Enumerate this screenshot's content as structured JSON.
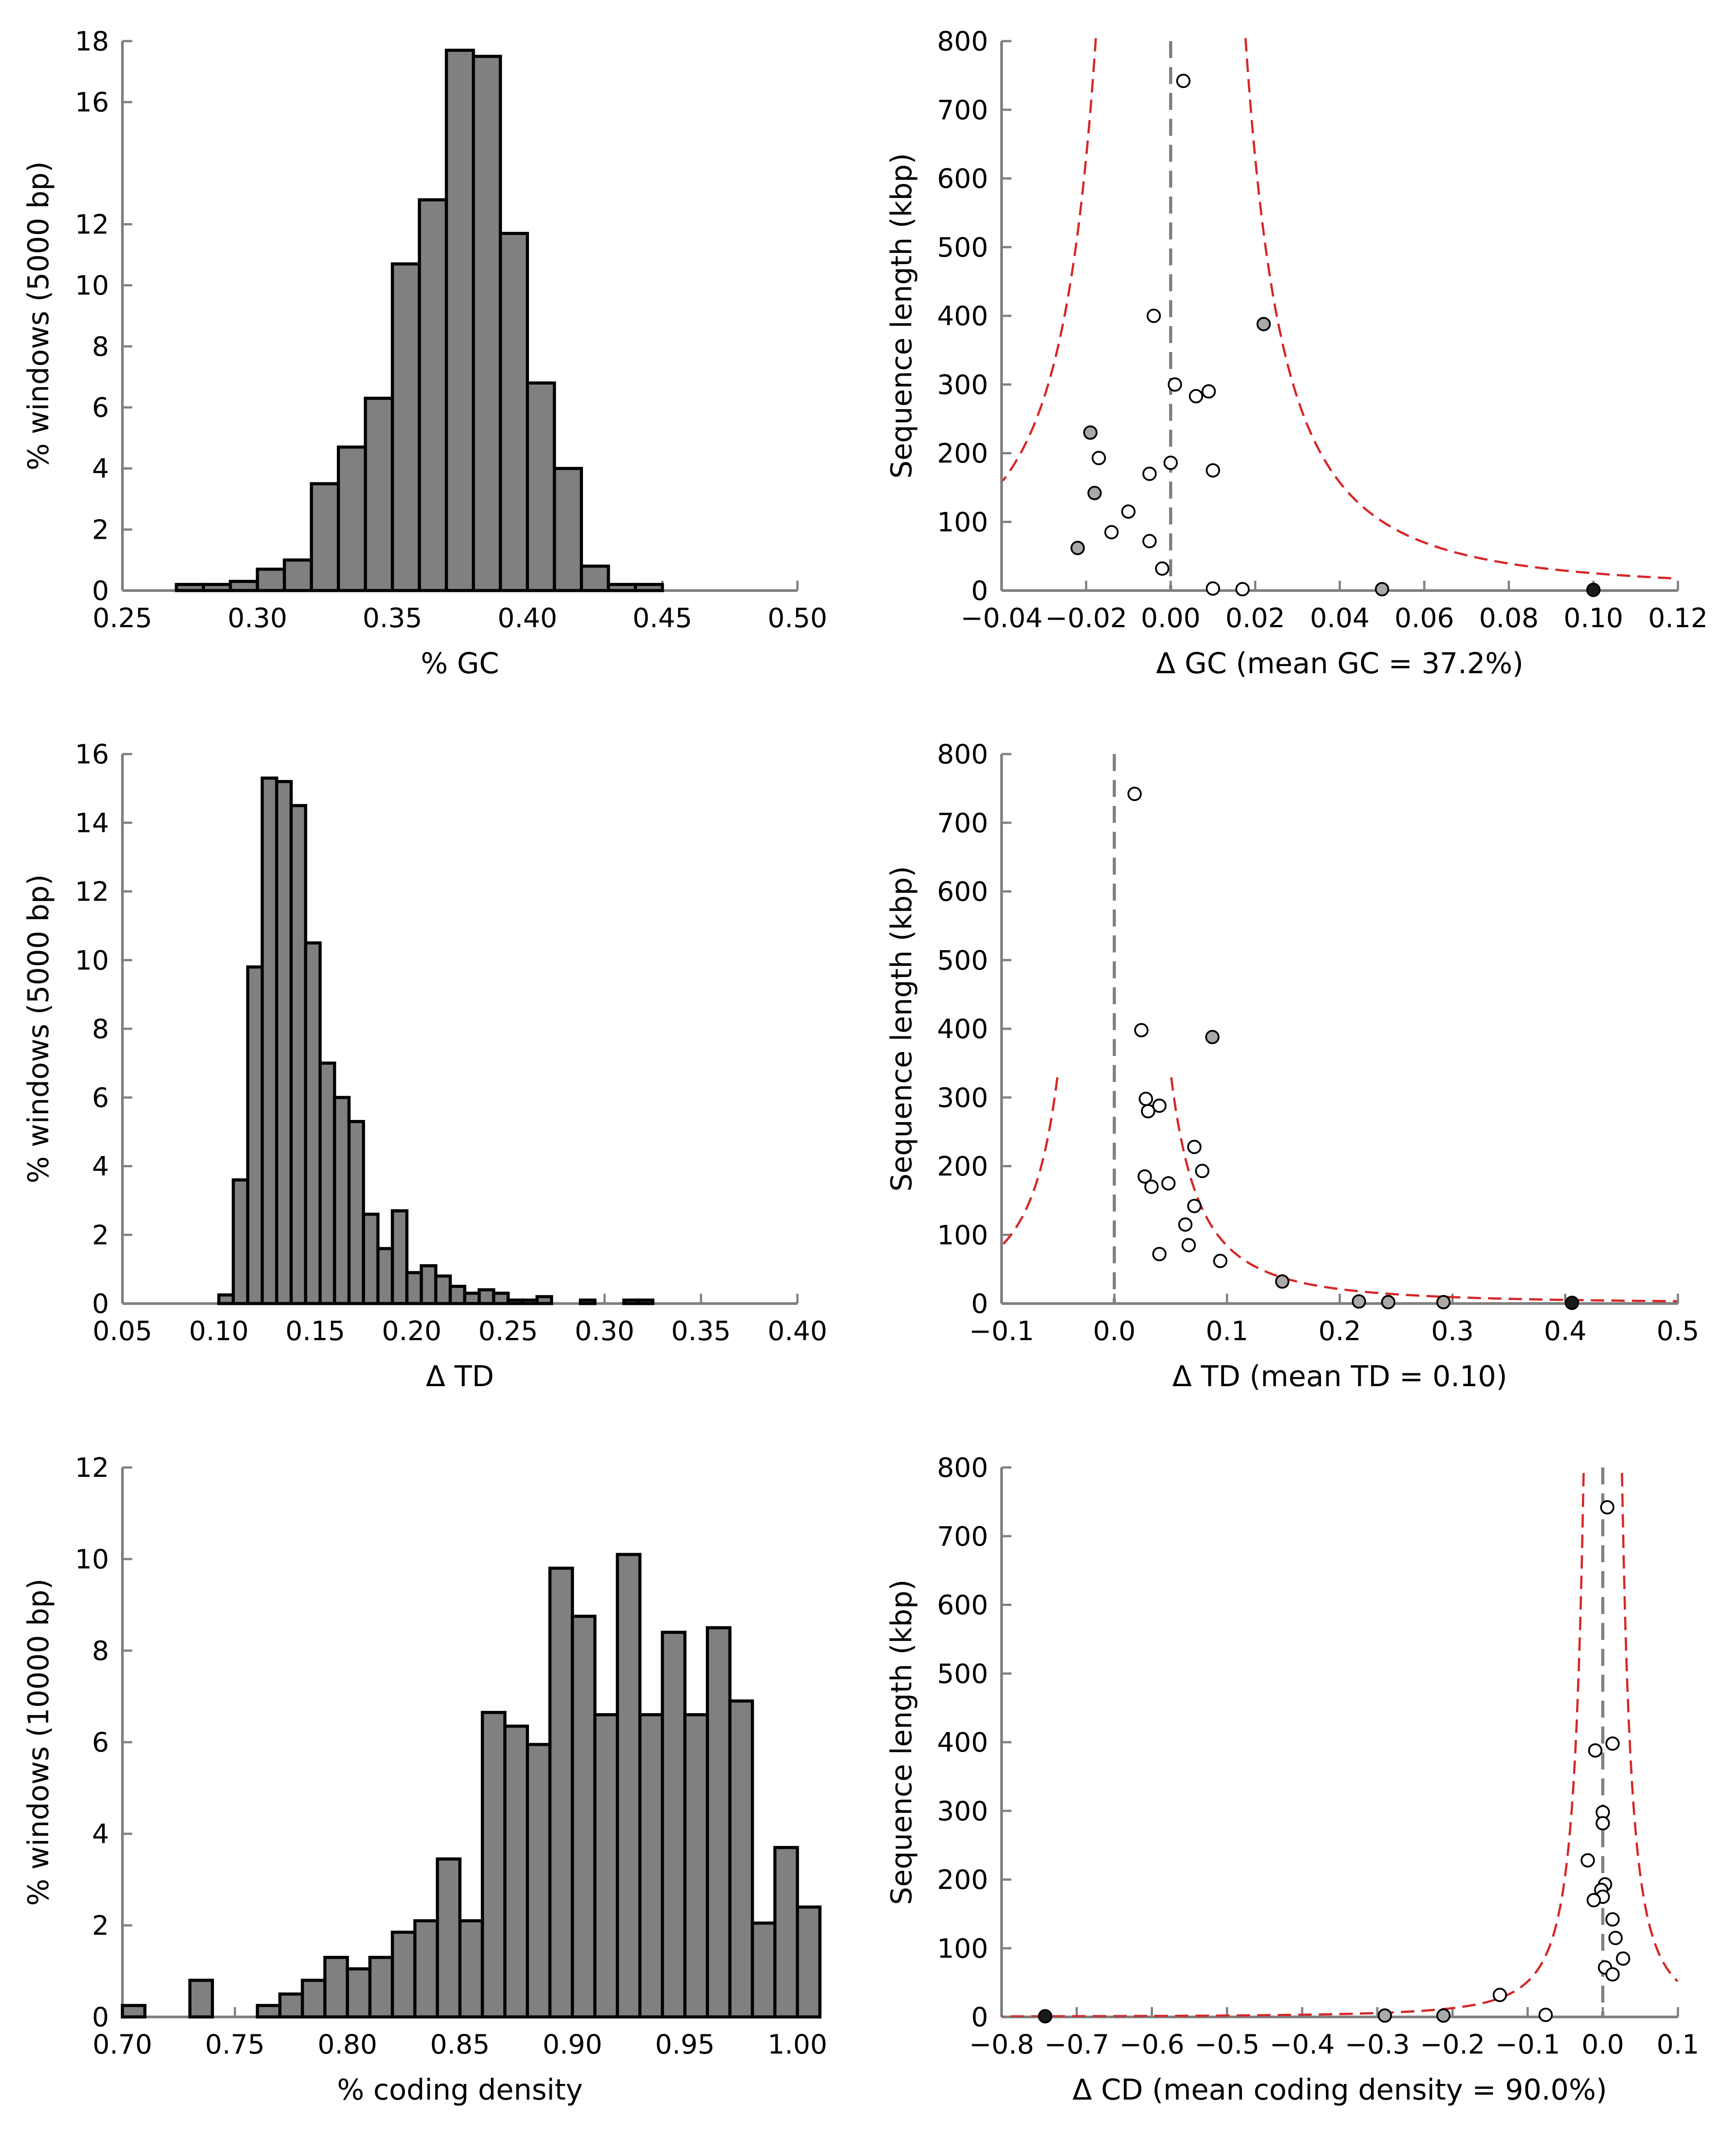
{
  "colors": {
    "bar_fill": "#808080",
    "bar_edge": "#000000",
    "axis": "#808080",
    "ref_line": "#808080",
    "curve": "#d62728",
    "point_open": "#ffffff",
    "point_grey": "#a9a9a9",
    "point_dark": "#1a1a1a"
  },
  "chart_data": [
    {
      "type": "bar",
      "subtype": "histogram",
      "xlabel": "% GC",
      "ylabel": "% windows (5000 bp)",
      "xlim": [
        0.25,
        0.5
      ],
      "ylim": [
        0,
        18
      ],
      "xticks": [
        "0.25",
        "0.30",
        "0.35",
        "0.40",
        "0.45",
        "0.50"
      ],
      "yticks": [
        "0",
        "2",
        "4",
        "6",
        "8",
        "10",
        "12",
        "16",
        "18"
      ],
      "ytick_values": [
        0,
        2,
        4,
        6,
        8,
        10,
        12,
        16,
        18
      ],
      "bin_start": 0.27,
      "bin_width": 0.01,
      "values": [
        0.2,
        0.2,
        0.3,
        0.7,
        1.0,
        3.5,
        4.7,
        6.3,
        10.7,
        12.8,
        17.7,
        17.5,
        11.7,
        6.8,
        4.0,
        0.8,
        0.2,
        0.2
      ],
      "grid": false
    },
    {
      "type": "scatter",
      "xlabel": "Δ GC (mean GC = 37.2%)",
      "ylabel": "Sequence length (kbp)",
      "xlim": [
        -0.04,
        0.12
      ],
      "ylim": [
        0,
        800
      ],
      "xticks": [
        "−0.04",
        "−0.02",
        "0.00",
        "0.02",
        "0.04",
        "0.06",
        "0.08",
        "0.10",
        "0.12"
      ],
      "yticks": [
        "0",
        "100",
        "200",
        "300",
        "400",
        "500",
        "600",
        "700",
        "800"
      ],
      "ref_x": 0,
      "curve": {
        "center": 0.0,
        "k": 0.252,
        "offset": 0.0
      },
      "points": [
        {
          "x": 0.003,
          "y": 742,
          "fill": "open"
        },
        {
          "x": 0.022,
          "y": 388,
          "fill": "grey"
        },
        {
          "x": -0.004,
          "y": 400,
          "fill": "open"
        },
        {
          "x": 0.001,
          "y": 300,
          "fill": "open"
        },
        {
          "x": 0.009,
          "y": 290,
          "fill": "open"
        },
        {
          "x": 0.006,
          "y": 283,
          "fill": "open"
        },
        {
          "x": -0.019,
          "y": 230,
          "fill": "grey"
        },
        {
          "x": -0.017,
          "y": 193,
          "fill": "open"
        },
        {
          "x": 0.0,
          "y": 186,
          "fill": "open"
        },
        {
          "x": 0.01,
          "y": 175,
          "fill": "open"
        },
        {
          "x": -0.005,
          "y": 170,
          "fill": "open"
        },
        {
          "x": -0.018,
          "y": 142,
          "fill": "grey"
        },
        {
          "x": -0.01,
          "y": 115,
          "fill": "open"
        },
        {
          "x": -0.014,
          "y": 85,
          "fill": "open"
        },
        {
          "x": -0.005,
          "y": 72,
          "fill": "open"
        },
        {
          "x": -0.022,
          "y": 62,
          "fill": "grey"
        },
        {
          "x": -0.002,
          "y": 32,
          "fill": "open"
        },
        {
          "x": 0.01,
          "y": 3,
          "fill": "open"
        },
        {
          "x": 0.017,
          "y": 2,
          "fill": "open"
        },
        {
          "x": 0.05,
          "y": 2,
          "fill": "grey"
        },
        {
          "x": 0.1,
          "y": 1,
          "fill": "dark"
        }
      ],
      "grid": false
    },
    {
      "type": "bar",
      "subtype": "histogram",
      "xlabel": "Δ TD",
      "ylabel": "% windows (5000 bp)",
      "xlim": [
        0.05,
        0.4
      ],
      "ylim": [
        0,
        16
      ],
      "xticks": [
        "0.05",
        "0.10",
        "0.15",
        "0.20",
        "0.25",
        "0.30",
        "0.35",
        "0.40"
      ],
      "yticks": [
        "0",
        "2",
        "4",
        "6",
        "8",
        "10",
        "12",
        "14",
        "16"
      ],
      "ytick_values": [
        0,
        2,
        4,
        6,
        8,
        10,
        12,
        14,
        16
      ],
      "bin_start": 0.1,
      "bin_width": 0.0075,
      "values": [
        0.25,
        3.6,
        9.8,
        15.3,
        15.2,
        14.5,
        10.5,
        7.0,
        6.0,
        5.3,
        2.6,
        1.6,
        2.7,
        0.9,
        1.1,
        0.8,
        0.5,
        0.3,
        0.4,
        0.3,
        0.1,
        0.1,
        0.2,
        0,
        0,
        0.1,
        0,
        0,
        0.1,
        0.1
      ],
      "grid": false
    },
    {
      "type": "scatter",
      "xlabel": "Δ TD (mean TD = 0.10)",
      "ylabel": "Sequence length (kbp)",
      "xlim": [
        -0.1,
        0.5
      ],
      "ylim": [
        0,
        800
      ],
      "xticks": [
        "−0.1",
        "0.0",
        "0.1",
        "0.2",
        "0.3",
        "0.4",
        "0.5"
      ],
      "yticks": [
        "0",
        "100",
        "200",
        "300",
        "400",
        "500",
        "600",
        "700",
        "800"
      ],
      "ref_x": 0,
      "curve": {
        "center": 0.0,
        "k": 0.84,
        "offset": 0.05
      },
      "points": [
        {
          "x": 0.018,
          "y": 742,
          "fill": "open"
        },
        {
          "x": 0.087,
          "y": 388,
          "fill": "grey"
        },
        {
          "x": 0.024,
          "y": 398,
          "fill": "open"
        },
        {
          "x": 0.028,
          "y": 298,
          "fill": "open"
        },
        {
          "x": 0.04,
          "y": 288,
          "fill": "open"
        },
        {
          "x": 0.03,
          "y": 280,
          "fill": "open"
        },
        {
          "x": 0.071,
          "y": 228,
          "fill": "open"
        },
        {
          "x": 0.078,
          "y": 193,
          "fill": "open"
        },
        {
          "x": 0.027,
          "y": 185,
          "fill": "open"
        },
        {
          "x": 0.048,
          "y": 175,
          "fill": "open"
        },
        {
          "x": 0.033,
          "y": 170,
          "fill": "open"
        },
        {
          "x": 0.071,
          "y": 142,
          "fill": "open"
        },
        {
          "x": 0.063,
          "y": 115,
          "fill": "open"
        },
        {
          "x": 0.066,
          "y": 85,
          "fill": "open"
        },
        {
          "x": 0.04,
          "y": 72,
          "fill": "open"
        },
        {
          "x": 0.094,
          "y": 62,
          "fill": "open"
        },
        {
          "x": 0.149,
          "y": 32,
          "fill": "grey"
        },
        {
          "x": 0.217,
          "y": 3,
          "fill": "grey"
        },
        {
          "x": 0.243,
          "y": 2,
          "fill": "grey"
        },
        {
          "x": 0.292,
          "y": 2,
          "fill": "grey"
        },
        {
          "x": 0.406,
          "y": 1,
          "fill": "dark"
        }
      ],
      "grid": false
    },
    {
      "type": "bar",
      "subtype": "histogram",
      "xlabel": "% coding density",
      "ylabel": "% windows (10000 bp)",
      "xlim": [
        0.7,
        1.0
      ],
      "ylim": [
        0,
        12
      ],
      "xticks": [
        "0.70",
        "0.75",
        "0.80",
        "0.85",
        "0.90",
        "0.95",
        "1.00"
      ],
      "yticks": [
        "0",
        "2",
        "4",
        "6",
        "8",
        "10",
        "12"
      ],
      "ytick_values": [
        0,
        2,
        4,
        6,
        8,
        10,
        12
      ],
      "bin_start": 0.7,
      "bin_width": 0.01,
      "values": [
        0.25,
        0,
        0,
        0.8,
        0,
        0,
        0.25,
        0.5,
        0.8,
        1.3,
        1.05,
        1.3,
        1.85,
        2.1,
        3.45,
        2.1,
        6.65,
        6.35,
        5.95,
        9.8,
        8.75,
        6.6,
        10.1,
        6.6,
        8.4,
        6.6,
        8.5,
        6.9,
        2.05,
        3.7,
        2.4
      ],
      "grid": false
    },
    {
      "type": "scatter",
      "xlabel": "Δ CD (mean coding density = 90.0%)",
      "ylabel": "Sequence length (kbp)",
      "xlim": [
        -0.8,
        0.1
      ],
      "ylim": [
        0,
        800
      ],
      "xticks": [
        "−0.8",
        "−0.7",
        "−0.6",
        "−0.5",
        "−0.4",
        "−0.3",
        "−0.2",
        "−0.1",
        "0.0",
        "0.1"
      ],
      "yticks": [
        "0",
        "100",
        "200",
        "300",
        "400",
        "500",
        "600",
        "700",
        "800"
      ],
      "ref_x": 0,
      "curve": {
        "center": 0.0,
        "k": 0.515,
        "offset": 0.016
      },
      "points": [
        {
          "x": 0.006,
          "y": 742,
          "fill": "open"
        },
        {
          "x": 0.013,
          "y": 398,
          "fill": "open"
        },
        {
          "x": -0.01,
          "y": 388,
          "fill": "open"
        },
        {
          "x": 0.0,
          "y": 298,
          "fill": "open"
        },
        {
          "x": 0.0,
          "y": 282,
          "fill": "open"
        },
        {
          "x": -0.02,
          "y": 228,
          "fill": "open"
        },
        {
          "x": 0.003,
          "y": 193,
          "fill": "open"
        },
        {
          "x": -0.002,
          "y": 185,
          "fill": "open"
        },
        {
          "x": 0.0,
          "y": 175,
          "fill": "open"
        },
        {
          "x": -0.012,
          "y": 170,
          "fill": "open"
        },
        {
          "x": 0.013,
          "y": 142,
          "fill": "open"
        },
        {
          "x": 0.017,
          "y": 115,
          "fill": "open"
        },
        {
          "x": 0.027,
          "y": 85,
          "fill": "open"
        },
        {
          "x": 0.003,
          "y": 72,
          "fill": "open"
        },
        {
          "x": 0.013,
          "y": 62,
          "fill": "open"
        },
        {
          "x": -0.137,
          "y": 32,
          "fill": "open"
        },
        {
          "x": -0.076,
          "y": 3,
          "fill": "open"
        },
        {
          "x": -0.212,
          "y": 2,
          "fill": "grey"
        },
        {
          "x": -0.29,
          "y": 2,
          "fill": "grey"
        },
        {
          "x": -0.742,
          "y": 1,
          "fill": "dark"
        }
      ],
      "grid": false
    }
  ]
}
